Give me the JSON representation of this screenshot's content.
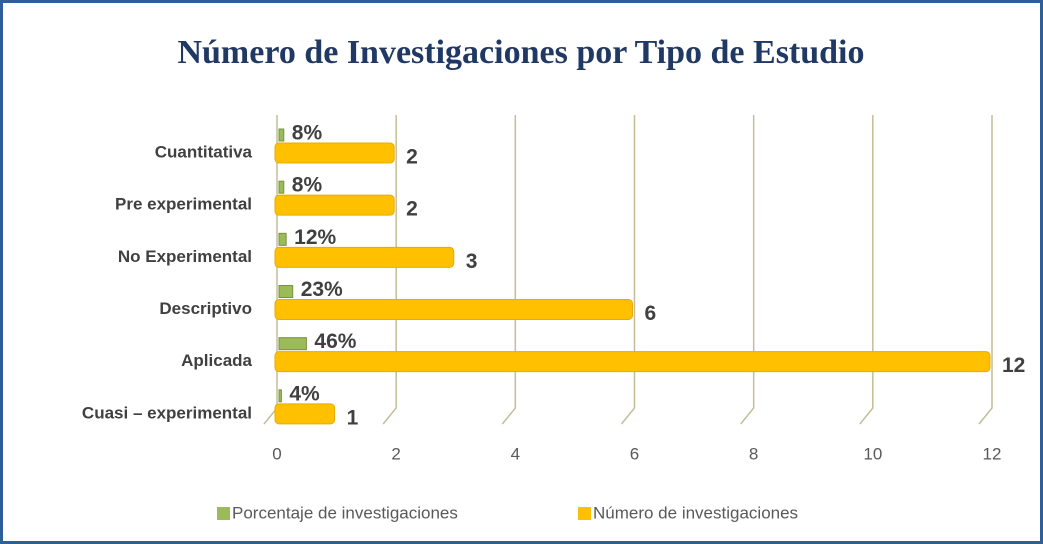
{
  "chart_data": {
    "type": "bar",
    "orientation": "horizontal",
    "title": "Número de Investigaciones por Tipo de Estudio",
    "categories": [
      "Cuantitativa",
      "Pre experimental",
      "No Experimental",
      "Descriptivo",
      "Aplicada",
      "Cuasi – experimental"
    ],
    "series": [
      {
        "name": "Porcentaje de investigaciones",
        "color": "#9bbb59",
        "values": [
          0.08,
          0.08,
          0.12,
          0.23,
          0.46,
          0.04
        ],
        "value_labels": [
          "8%",
          "8%",
          "12%",
          "23%",
          "46%",
          "4%"
        ]
      },
      {
        "name": "Número de investigaciones",
        "color": "#ffc000",
        "values": [
          2,
          2,
          3,
          6,
          12,
          1
        ]
      }
    ],
    "xlim": [
      0,
      12
    ],
    "xticks": [
      0,
      2,
      4,
      6,
      8,
      10,
      12
    ],
    "grid": true,
    "legend": "bottom"
  }
}
